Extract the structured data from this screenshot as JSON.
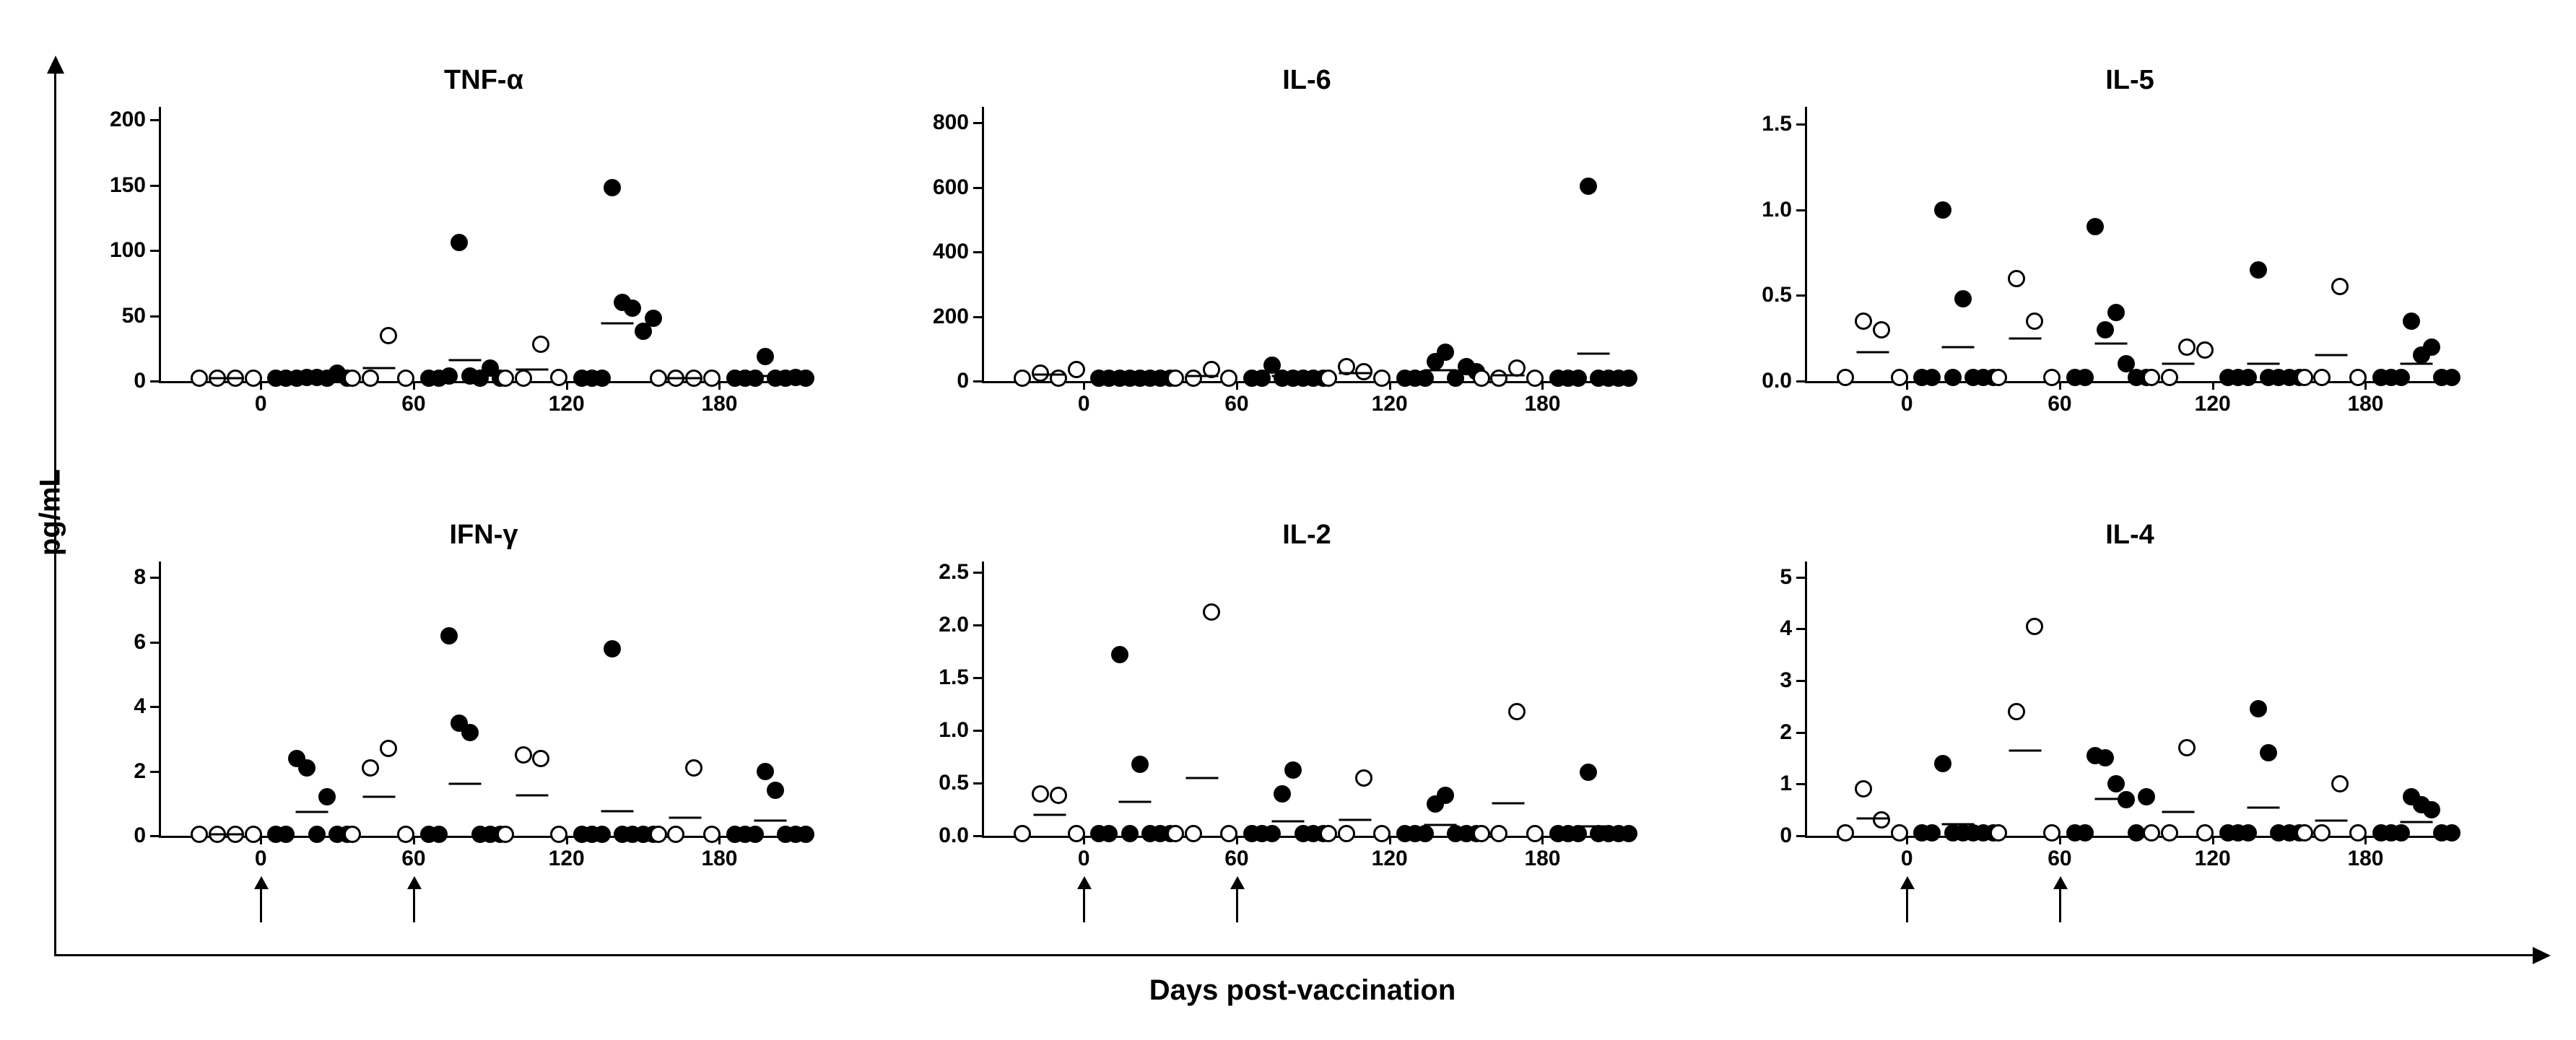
{
  "globalYLabel": "pg/mL",
  "globalXLabel": "Days post-vaccination",
  "layout": {
    "plotWidth": 900,
    "plotHeight": 380,
    "pointSize": 24,
    "meanLineWidth": 45,
    "panelColStarts": [
      200,
      1340,
      2480
    ],
    "panelRowStarts": [
      70,
      700
    ],
    "titleHeight": 70,
    "arrowLength": 50
  },
  "colors": {
    "background": "#ffffff",
    "axis": "#000000",
    "pointFill": "#000000",
    "pointOpenStroke": "#000000"
  },
  "fontSizes": {
    "title": 38,
    "tick": 30,
    "globalLabel": 40
  },
  "xAxis": {
    "min": -40,
    "max": 215,
    "ticks": [
      0,
      60,
      120,
      180
    ],
    "groupCenters": {
      "open": [
        -24,
        -17,
        -10,
        -3
      ],
      "filled": [
        6,
        10,
        14,
        18,
        22,
        26,
        30,
        34
      ]
    }
  },
  "panels": [
    {
      "title": "TNF-α",
      "row": 0,
      "col": 0,
      "yMin": 0,
      "yMax": 210,
      "yTicks": [
        0,
        50,
        100,
        150,
        200
      ],
      "arrows": [],
      "timepoints": [
        {
          "x": 0,
          "open": [
            2,
            2,
            2,
            2
          ],
          "filled": [
            2,
            2,
            2,
            3,
            3,
            2,
            6,
            2
          ],
          "meanOpen": 2,
          "meanFilled": 3
        },
        {
          "x": 60,
          "open": [
            2,
            2,
            35,
            2
          ],
          "filled": [
            2,
            2,
            4,
            106,
            4,
            2,
            10,
            2
          ],
          "meanOpen": 10,
          "meanFilled": 16
        },
        {
          "x": 120,
          "open": [
            2,
            2,
            28,
            3
          ],
          "filled": [
            2,
            2,
            2,
            148,
            60,
            56,
            38,
            48
          ],
          "meanOpen": 9,
          "meanFilled": 44
        },
        {
          "x": 180,
          "open": [
            2,
            2,
            2,
            2
          ],
          "filled": [
            2,
            2,
            2,
            19,
            2,
            2,
            3,
            2
          ],
          "meanOpen": 2,
          "meanFilled": 4
        }
      ]
    },
    {
      "title": "IL-6",
      "row": 0,
      "col": 1,
      "yMin": 0,
      "yMax": 850,
      "yTicks": [
        0,
        200,
        400,
        600,
        800
      ],
      "arrows": [],
      "timepoints": [
        {
          "x": 0,
          "open": [
            10,
            25,
            10,
            35
          ],
          "filled": [
            10,
            10,
            10,
            10,
            10,
            10,
            10,
            10
          ],
          "meanOpen": 20,
          "meanFilled": 10
        },
        {
          "x": 60,
          "open": [
            10,
            10,
            35,
            10
          ],
          "filled": [
            10,
            10,
            50,
            10,
            10,
            10,
            10,
            10
          ],
          "meanOpen": 16,
          "meanFilled": 15
        },
        {
          "x": 120,
          "open": [
            10,
            45,
            30,
            10
          ],
          "filled": [
            10,
            10,
            10,
            60,
            90,
            10,
            45,
            30
          ],
          "meanOpen": 24,
          "meanFilled": 33
        },
        {
          "x": 180,
          "open": [
            10,
            10,
            40,
            10
          ],
          "filled": [
            10,
            10,
            10,
            605,
            10,
            10,
            10,
            10
          ],
          "meanOpen": 18,
          "meanFilled": 85
        }
      ]
    },
    {
      "title": "IL-5",
      "row": 0,
      "col": 2,
      "yMin": 0,
      "yMax": 1.6,
      "yTicks": [
        0.0,
        0.5,
        1.0,
        1.5
      ],
      "arrows": [],
      "timepoints": [
        {
          "x": 0,
          "open": [
            0.02,
            0.35,
            0.3,
            0.02
          ],
          "filled": [
            0.02,
            0.02,
            1.0,
            0.02,
            0.48,
            0.02,
            0.02,
            0.02
          ],
          "meanOpen": 0.17,
          "meanFilled": 0.2
        },
        {
          "x": 60,
          "open": [
            0.02,
            0.6,
            0.35,
            0.02
          ],
          "filled": [
            0.02,
            0.02,
            0.9,
            0.3,
            0.4,
            0.1,
            0.02,
            0.02
          ],
          "meanOpen": 0.25,
          "meanFilled": 0.22
        },
        {
          "x": 120,
          "open": [
            0.02,
            0.02,
            0.2,
            0.18
          ],
          "filled": [
            0.02,
            0.02,
            0.02,
            0.65,
            0.02,
            0.02,
            0.02,
            0.02
          ],
          "meanOpen": 0.1,
          "meanFilled": 0.1
        },
        {
          "x": 180,
          "open": [
            0.02,
            0.02,
            0.55,
            0.02
          ],
          "filled": [
            0.02,
            0.02,
            0.02,
            0.35,
            0.15,
            0.2,
            0.02,
            0.02
          ],
          "meanOpen": 0.15,
          "meanFilled": 0.1
        }
      ]
    },
    {
      "title": "IFN-γ",
      "row": 1,
      "col": 0,
      "yMin": 0,
      "yMax": 8.5,
      "yTicks": [
        0,
        2,
        4,
        6,
        8
      ],
      "arrows": [
        0,
        60
      ],
      "timepoints": [
        {
          "x": 0,
          "open": [
            0.05,
            0.05,
            0.05,
            0.05
          ],
          "filled": [
            0.05,
            0.05,
            2.4,
            2.1,
            0.05,
            1.2,
            0.05,
            0.05
          ],
          "meanOpen": 0.05,
          "meanFilled": 0.74
        },
        {
          "x": 60,
          "open": [
            0.05,
            2.1,
            2.7,
            0.05
          ],
          "filled": [
            0.05,
            0.05,
            6.2,
            3.5,
            3.2,
            0.05,
            0.05,
            0.05
          ],
          "meanOpen": 1.2,
          "meanFilled": 1.6
        },
        {
          "x": 120,
          "open": [
            0.05,
            2.5,
            2.4,
            0.05
          ],
          "filled": [
            0.05,
            0.05,
            0.05,
            5.8,
            0.05,
            0.05,
            0.05,
            0.05
          ],
          "meanOpen": 1.25,
          "meanFilled": 0.76
        },
        {
          "x": 180,
          "open": [
            0.05,
            0.05,
            2.1,
            0.05
          ],
          "filled": [
            0.05,
            0.05,
            0.05,
            2.0,
            1.4,
            0.05,
            0.05,
            0.05
          ],
          "meanOpen": 0.56,
          "meanFilled": 0.46
        }
      ]
    },
    {
      "title": "IL-2",
      "row": 1,
      "col": 1,
      "yMin": 0,
      "yMax": 2.6,
      "yTicks": [
        0.0,
        0.5,
        1.0,
        1.5,
        2.0,
        2.5
      ],
      "arrows": [
        0,
        60
      ],
      "timepoints": [
        {
          "x": 0,
          "open": [
            0.02,
            0.4,
            0.38,
            0.02
          ],
          "filled": [
            0.02,
            0.02,
            1.72,
            0.02,
            0.68,
            0.02,
            0.02,
            0.02
          ],
          "meanOpen": 0.2,
          "meanFilled": 0.32
        },
        {
          "x": 60,
          "open": [
            0.02,
            0.02,
            2.12,
            0.02
          ],
          "filled": [
            0.02,
            0.02,
            0.02,
            0.4,
            0.62,
            0.02,
            0.02,
            0.02
          ],
          "meanOpen": 0.55,
          "meanFilled": 0.14
        },
        {
          "x": 120,
          "open": [
            0.02,
            0.02,
            0.55,
            0.02
          ],
          "filled": [
            0.02,
            0.02,
            0.02,
            0.3,
            0.38,
            0.02,
            0.02,
            0.02
          ],
          "meanOpen": 0.15,
          "meanFilled": 0.1
        },
        {
          "x": 180,
          "open": [
            0.02,
            0.02,
            1.18,
            0.02
          ],
          "filled": [
            0.02,
            0.02,
            0.02,
            0.6,
            0.02,
            0.02,
            0.02,
            0.02
          ],
          "meanOpen": 0.31,
          "meanFilled": 0.09
        }
      ]
    },
    {
      "title": "IL-4",
      "row": 1,
      "col": 2,
      "yMin": 0,
      "yMax": 5.3,
      "yTicks": [
        0,
        1,
        2,
        3,
        4,
        5
      ],
      "arrows": [
        0,
        60
      ],
      "timepoints": [
        {
          "x": 0,
          "open": [
            0.05,
            0.9,
            0.3,
            0.05
          ],
          "filled": [
            0.05,
            0.05,
            1.4,
            0.05,
            0.05,
            0.05,
            0.05,
            0.05
          ],
          "meanOpen": 0.33,
          "meanFilled": 0.22
        },
        {
          "x": 60,
          "open": [
            0.05,
            2.4,
            4.05,
            0.05
          ],
          "filled": [
            0.05,
            0.05,
            1.55,
            1.5,
            1.0,
            0.7,
            0.05,
            0.75
          ],
          "meanOpen": 1.64,
          "meanFilled": 0.71
        },
        {
          "x": 120,
          "open": [
            0.05,
            0.05,
            1.7,
            0.05
          ],
          "filled": [
            0.05,
            0.05,
            0.05,
            2.45,
            1.6,
            0.05,
            0.05,
            0.05
          ],
          "meanOpen": 0.46,
          "meanFilled": 0.54
        },
        {
          "x": 180,
          "open": [
            0.05,
            0.05,
            1.0,
            0.05
          ],
          "filled": [
            0.05,
            0.05,
            0.05,
            0.75,
            0.6,
            0.5,
            0.05,
            0.05
          ],
          "meanOpen": 0.29,
          "meanFilled": 0.26
        }
      ]
    }
  ]
}
